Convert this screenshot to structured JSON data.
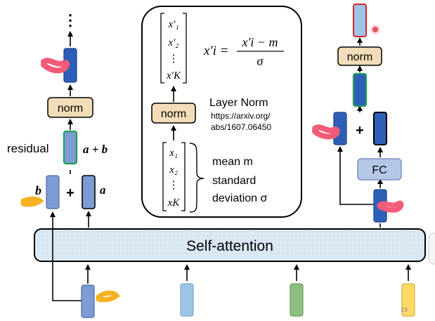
{
  "left": {
    "ellipsis": "⋮",
    "norm_label": "norm",
    "residual_label": "residual",
    "sum_expr": "a + b",
    "plus": "+",
    "vec_b": "b",
    "vec_a": "a"
  },
  "center_panel": {
    "x_prime_items": [
      "x′₁",
      "x′₂",
      "⋮",
      "x′K"
    ],
    "formula_lhs": "x′i =",
    "formula_num": "x′i − m",
    "formula_den": "σ",
    "norm_label": "norm",
    "title": "Layer Norm",
    "url_line1": "https://arxiv.org/",
    "url_line2": "abs/1607.06450",
    "x_items": [
      "x₁",
      "x₂",
      "⋮",
      "xK"
    ],
    "mean_text": "mean m",
    "std_line1": "standard",
    "std_line2": "deviation σ"
  },
  "right": {
    "norm_label": "norm",
    "plus": "+",
    "fc_label": "FC"
  },
  "self_attention_label": "Self-attention",
  "page_number": "19",
  "colors": {
    "norm_fill": "#f2ddb8",
    "blue_dark": "#2e5fb8",
    "blue_mid": "#7d9cd6",
    "blue_light": "#9dc3e6",
    "green": "#8fbf7f",
    "yellow": "#ffd966",
    "orange_scribble": "#f5b120",
    "pink_scribble": "#f25c77",
    "fc_fill": "#b4c7e7",
    "sa_fill": "#dbe8f4",
    "outline_green": "#1f9d55",
    "outline_red": "#d9252c"
  }
}
